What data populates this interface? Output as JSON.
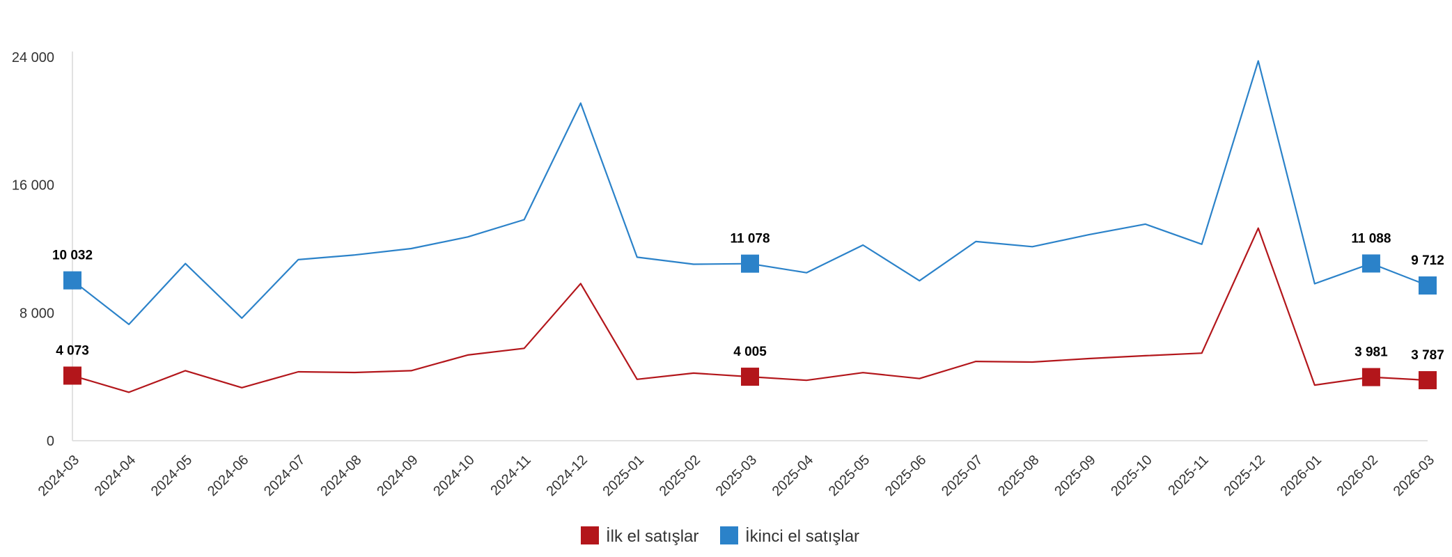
{
  "chart_data": {
    "type": "line",
    "categories": [
      "2024-03",
      "2024-04",
      "2024-05",
      "2024-06",
      "2024-07",
      "2024-08",
      "2024-09",
      "2024-10",
      "2024-11",
      "2024-12",
      "2025-01",
      "2025-02",
      "2025-03",
      "2025-04",
      "2025-05",
      "2025-06",
      "2025-07",
      "2025-08",
      "2025-09",
      "2025-10",
      "2025-11",
      "2025-12",
      "2026-01",
      "2026-02",
      "2026-03"
    ],
    "ylim": [
      0,
      24000
    ],
    "yticks": [
      0,
      8000,
      16000,
      24000
    ],
    "ytick_labels": [
      "0",
      "8 000",
      "16 000",
      "24 000"
    ],
    "grid": false,
    "legend_position": "bottom",
    "series": [
      {
        "name": "İlk el satışlar",
        "color": "#b3161b",
        "values": [
          4073,
          3030,
          4380,
          3320,
          4310,
          4270,
          4380,
          5360,
          5780,
          9830,
          3840,
          4230,
          4005,
          3780,
          4260,
          3890,
          4960,
          4920,
          5140,
          5320,
          5480,
          13300,
          3480,
          3981,
          3787
        ],
        "labeled_points": [
          {
            "index": 0,
            "label": "4 073"
          },
          {
            "index": 12,
            "label": "4 005"
          },
          {
            "index": 23,
            "label": "3 981"
          },
          {
            "index": 24,
            "label": "3 787"
          }
        ]
      },
      {
        "name": "İkinci el satışlar",
        "color": "#2b82c9",
        "values": [
          10032,
          7280,
          11080,
          7670,
          11330,
          11620,
          12020,
          12750,
          13830,
          21120,
          11480,
          11040,
          11078,
          10510,
          12240,
          10010,
          12460,
          12140,
          12890,
          13550,
          12290,
          23760,
          9820,
          11088,
          9712
        ],
        "labeled_points": [
          {
            "index": 0,
            "label": "10 032"
          },
          {
            "index": 12,
            "label": "11 078"
          },
          {
            "index": 23,
            "label": "11 088"
          },
          {
            "index": 24,
            "label": "9 712"
          }
        ]
      }
    ]
  }
}
